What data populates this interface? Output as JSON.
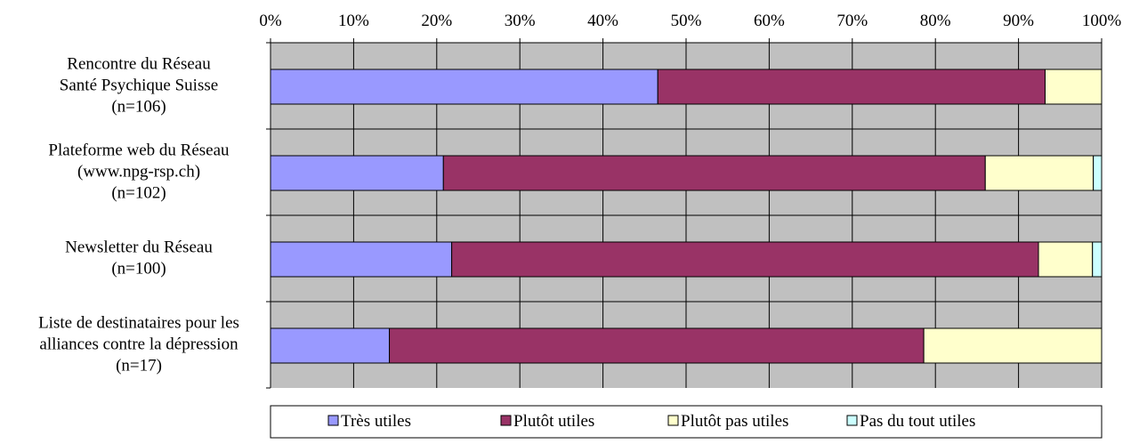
{
  "chart_data": {
    "type": "bar",
    "orientation": "horizontal",
    "stacked": "percent",
    "categories": [
      [
        "Rencontre du Réseau",
        "Santé Psychique Suisse",
        "(n=106)"
      ],
      [
        "Plateforme web du Réseau",
        "(www.npg-rsp.ch)",
        "(n=102)"
      ],
      [
        "Newsletter du Réseau",
        "(n=100)"
      ],
      [
        "Liste de destinataires pour les",
        "alliances contre la dépression",
        "(n=17)"
      ]
    ],
    "series": [
      {
        "name": "Très utiles",
        "color": "#9999ff",
        "values": [
          46.6,
          20.8,
          21.8,
          14.3
        ]
      },
      {
        "name": "Plutôt utiles",
        "color": "#993366",
        "values": [
          46.6,
          65.2,
          70.6,
          64.3
        ]
      },
      {
        "name": "Plutôt pas utiles",
        "color": "#ffffcc",
        "values": [
          6.8,
          13.0,
          6.5,
          21.4
        ]
      },
      {
        "name": "Pas du tout utiles",
        "color": "#ccffff",
        "values": [
          0.0,
          1.0,
          1.1,
          0.0
        ]
      }
    ],
    "xlim": [
      0,
      100
    ],
    "xticks": [
      "0%",
      "10%",
      "20%",
      "30%",
      "40%",
      "50%",
      "60%",
      "70%",
      "80%",
      "90%",
      "100%"
    ],
    "x_axis_position": "top",
    "grid": true,
    "plot_background": "#c0c0c0",
    "legend_position": "bottom",
    "title": "",
    "xlabel": "",
    "ylabel": ""
  }
}
